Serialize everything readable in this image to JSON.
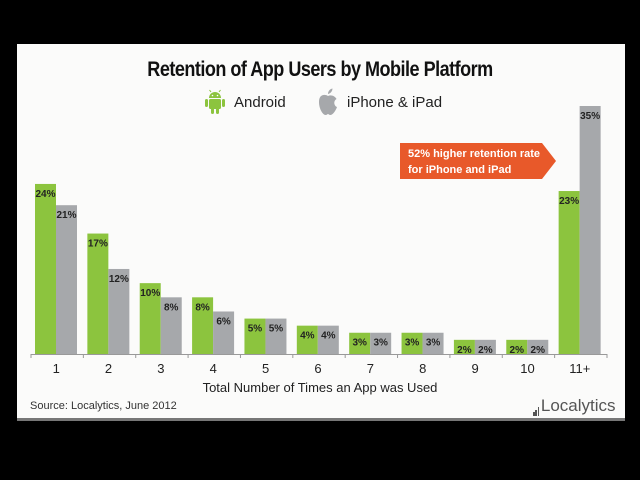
{
  "chart_data": {
    "type": "bar",
    "title": "Retention of App Users by Mobile Platform",
    "xlabel": "Total Number of Times an App was Used",
    "ylabel": "",
    "categories": [
      "1",
      "2",
      "3",
      "4",
      "5",
      "6",
      "7",
      "8",
      "9",
      "10",
      "11+"
    ],
    "series": [
      {
        "name": "Android",
        "color": "#8cc43e",
        "values": [
          24,
          17,
          10,
          8,
          5,
          4,
          3,
          3,
          2,
          2,
          23
        ],
        "labels": [
          "24%",
          "17%",
          "10%",
          "8%",
          "5%",
          "4%",
          "3%",
          "3%",
          "2%",
          "2%",
          "23%"
        ]
      },
      {
        "name": "iPhone & iPad",
        "color": "#a6a8ab",
        "values": [
          21,
          12,
          8,
          6,
          5,
          4,
          3,
          3,
          2,
          2,
          35
        ],
        "labels": [
          "21%",
          "12%",
          "8%",
          "6%",
          "5%",
          "4%",
          "3%",
          "3%",
          "2%",
          "2%",
          "35%"
        ]
      }
    ],
    "ylim": [
      0,
      35
    ],
    "grid": false,
    "legend_placement": "top-center",
    "annotation": {
      "text_line1": "52% higher retention rate",
      "text_line2": "for iPhone and iPad",
      "color": "#e8592a"
    }
  },
  "legend": {
    "android_label": "Android",
    "apple_label": "iPhone & iPad"
  },
  "footer": {
    "source": "Source: Localytics, June 2012",
    "logo_text": "Localytics"
  }
}
